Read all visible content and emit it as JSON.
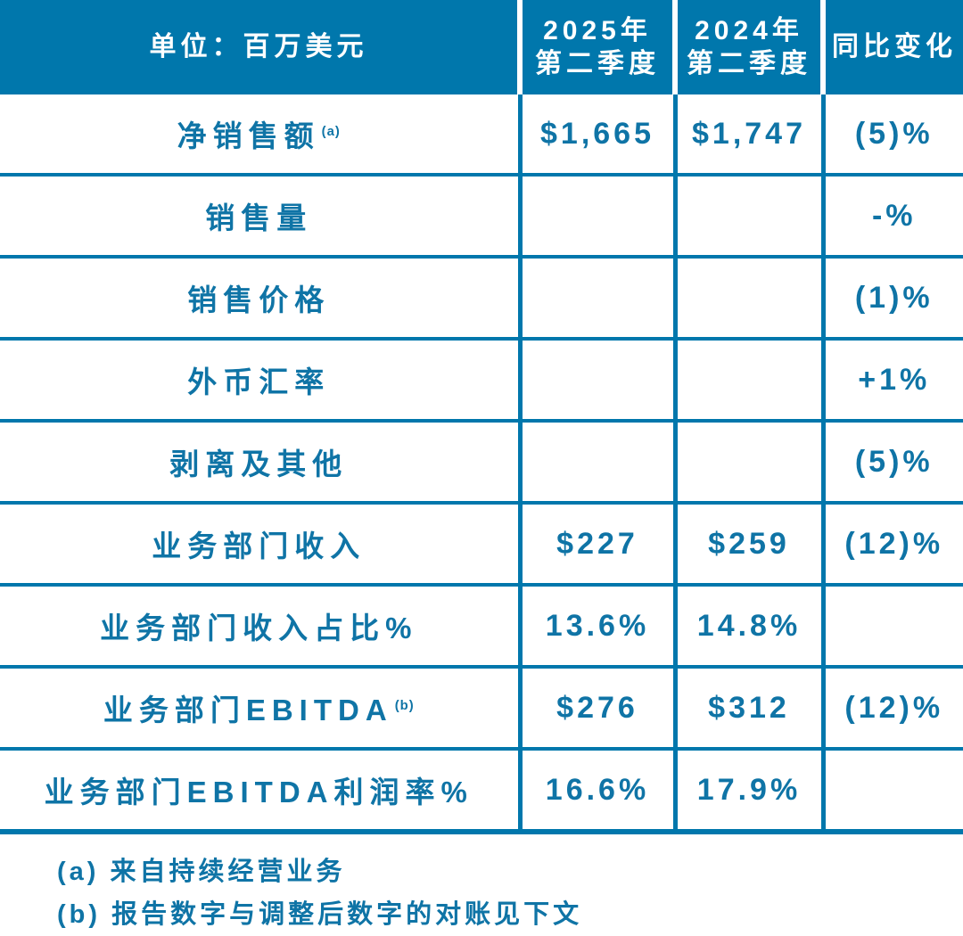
{
  "colors": {
    "header_bg": "#0077AC",
    "border": "#0077AC",
    "text_blue": "#0F74A6",
    "header_text": "#FFFFFF"
  },
  "table": {
    "header": {
      "unit_label": "单位：百万美元",
      "col_2025_line1": "2025年",
      "col_2025_line2": "第二季度",
      "col_2024_line1": "2024年",
      "col_2024_line2": "第二季度",
      "col_change": "同比变化"
    },
    "rows": [
      {
        "label": "净销售额",
        "sup": "(a)",
        "v2025": "$1,665",
        "v2024": "$1,747",
        "change": "(5)%"
      },
      {
        "label": "销售量",
        "v2025": "",
        "v2024": "",
        "change": "-%"
      },
      {
        "label": "销售价格",
        "v2025": "",
        "v2024": "",
        "change": "(1)%"
      },
      {
        "label": "外币汇率",
        "v2025": "",
        "v2024": "",
        "change": "+1%"
      },
      {
        "label": "剥离及其他",
        "v2025": "",
        "v2024": "",
        "change": "(5)%"
      },
      {
        "label": "业务部门收入",
        "v2025": "$227",
        "v2024": "$259",
        "change": "(12)%"
      },
      {
        "label": "业务部门收入占比%",
        "v2025": "13.6%",
        "v2024": "14.8%",
        "change": ""
      },
      {
        "label": "业务部门EBITDA",
        "sup": "(b)",
        "v2025": "$276",
        "v2024": "$312",
        "change": "(12)%"
      },
      {
        "label": "业务部门EBITDA利润率%",
        "v2025": "16.6%",
        "v2024": "17.9%",
        "change": ""
      }
    ]
  },
  "footnotes": {
    "a": "(a) 来自持续经营业务",
    "b": "(b) 报告数字与调整后数字的对账见下文"
  }
}
